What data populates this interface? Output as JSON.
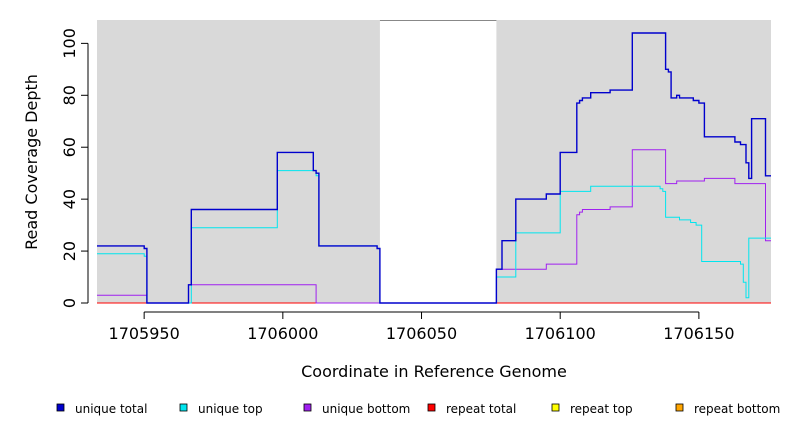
{
  "chart_data": {
    "type": "line",
    "xlabel": "Coordinate in Reference Genome",
    "ylabel": "Read Coverage Depth",
    "xlim": [
      1705933,
      1706176
    ],
    "ylim": [
      0,
      109
    ],
    "x_ticks": [
      1705950,
      1706000,
      1706050,
      1706100,
      1706150
    ],
    "x_tick_labels": [
      "1705950",
      "1706000",
      "1706050",
      "1706100",
      "1706150"
    ],
    "y_ticks": [
      0,
      20,
      40,
      60,
      80,
      100
    ],
    "y_tick_labels": [
      "0",
      "20",
      "40",
      "60",
      "80",
      "100"
    ],
    "background": "#d9d9d9",
    "gap_region": [
      1706035,
      1706077
    ],
    "legend_position": "bottom",
    "series": [
      {
        "name": "unique total",
        "color": "#0000cd",
        "points": [
          [
            1705933,
            22
          ],
          [
            1705950,
            22
          ],
          [
            1705950,
            21
          ],
          [
            1705951,
            21
          ],
          [
            1705951,
            0
          ],
          [
            1705966,
            0
          ],
          [
            1705966,
            7
          ],
          [
            1705967,
            7
          ],
          [
            1705967,
            36
          ],
          [
            1705998,
            36
          ],
          [
            1705998,
            58
          ],
          [
            1706011,
            58
          ],
          [
            1706011,
            51
          ],
          [
            1706012,
            51
          ],
          [
            1706012,
            50
          ],
          [
            1706013,
            50
          ],
          [
            1706013,
            22
          ],
          [
            1706034,
            22
          ],
          [
            1706034,
            21
          ],
          [
            1706035,
            21
          ],
          [
            1706035,
            0
          ],
          [
            1706077,
            0
          ],
          [
            1706077,
            13
          ],
          [
            1706079,
            13
          ],
          [
            1706079,
            24
          ],
          [
            1706084,
            24
          ],
          [
            1706084,
            40
          ],
          [
            1706095,
            40
          ],
          [
            1706095,
            42
          ],
          [
            1706100,
            42
          ],
          [
            1706100,
            58
          ],
          [
            1706106,
            58
          ],
          [
            1706106,
            77
          ],
          [
            1706107,
            77
          ],
          [
            1706107,
            78
          ],
          [
            1706108,
            78
          ],
          [
            1706108,
            79
          ],
          [
            1706111,
            79
          ],
          [
            1706111,
            81
          ],
          [
            1706118,
            81
          ],
          [
            1706118,
            82
          ],
          [
            1706126,
            82
          ],
          [
            1706126,
            104
          ],
          [
            1706138,
            104
          ],
          [
            1706138,
            90
          ],
          [
            1706139,
            90
          ],
          [
            1706139,
            89
          ],
          [
            1706140,
            89
          ],
          [
            1706140,
            79
          ],
          [
            1706142,
            79
          ],
          [
            1706142,
            80
          ],
          [
            1706143,
            80
          ],
          [
            1706143,
            79
          ],
          [
            1706148,
            79
          ],
          [
            1706148,
            78
          ],
          [
            1706150,
            78
          ],
          [
            1706150,
            77
          ],
          [
            1706152,
            77
          ],
          [
            1706152,
            64
          ],
          [
            1706163,
            64
          ],
          [
            1706163,
            62
          ],
          [
            1706165,
            62
          ],
          [
            1706165,
            61
          ],
          [
            1706167,
            61
          ],
          [
            1706167,
            54
          ],
          [
            1706168,
            54
          ],
          [
            1706168,
            48
          ],
          [
            1706169,
            48
          ],
          [
            1706169,
            71
          ],
          [
            1706174,
            71
          ],
          [
            1706174,
            49
          ],
          [
            1706176,
            49
          ]
        ]
      },
      {
        "name": "unique top",
        "color": "#00e5ee",
        "points": [
          [
            1705933,
            19
          ],
          [
            1705950,
            19
          ],
          [
            1705950,
            18
          ],
          [
            1705951,
            18
          ],
          [
            1705951,
            0
          ],
          [
            1705967,
            0
          ],
          [
            1705967,
            29
          ],
          [
            1705998,
            29
          ],
          [
            1705998,
            51
          ],
          [
            1706012,
            51
          ],
          [
            1706012,
            49
          ],
          [
            1706013,
            49
          ],
          [
            1706013,
            22
          ],
          [
            1706034,
            22
          ],
          [
            1706034,
            21
          ],
          [
            1706035,
            21
          ],
          [
            1706035,
            0
          ],
          [
            1706077,
            0
          ],
          [
            1706077,
            10
          ],
          [
            1706084,
            10
          ],
          [
            1706084,
            27
          ],
          [
            1706100,
            27
          ],
          [
            1706100,
            43
          ],
          [
            1706111,
            43
          ],
          [
            1706111,
            45
          ],
          [
            1706136,
            45
          ],
          [
            1706136,
            44
          ],
          [
            1706137,
            44
          ],
          [
            1706137,
            43
          ],
          [
            1706138,
            43
          ],
          [
            1706138,
            33
          ],
          [
            1706143,
            33
          ],
          [
            1706143,
            32
          ],
          [
            1706147,
            32
          ],
          [
            1706147,
            31
          ],
          [
            1706149,
            31
          ],
          [
            1706149,
            30
          ],
          [
            1706151,
            30
          ],
          [
            1706151,
            16
          ],
          [
            1706165,
            16
          ],
          [
            1706165,
            15
          ],
          [
            1706166,
            15
          ],
          [
            1706166,
            8
          ],
          [
            1706167,
            8
          ],
          [
            1706167,
            2
          ],
          [
            1706168,
            2
          ],
          [
            1706168,
            25
          ],
          [
            1706176,
            25
          ]
        ]
      },
      {
        "name": "unique bottom",
        "color": "#a020f0",
        "points": [
          [
            1705933,
            3
          ],
          [
            1705950,
            3
          ],
          [
            1705950,
            3
          ],
          [
            1705951,
            3
          ],
          [
            1705951,
            0
          ],
          [
            1705966,
            0
          ],
          [
            1705966,
            7
          ],
          [
            1706012,
            7
          ],
          [
            1706012,
            0
          ],
          [
            1706077,
            0
          ],
          [
            1706077,
            13
          ],
          [
            1706095,
            13
          ],
          [
            1706095,
            15
          ],
          [
            1706106,
            15
          ],
          [
            1706106,
            34
          ],
          [
            1706107,
            34
          ],
          [
            1706107,
            35
          ],
          [
            1706108,
            35
          ],
          [
            1706108,
            36
          ],
          [
            1706118,
            36
          ],
          [
            1706118,
            37
          ],
          [
            1706126,
            37
          ],
          [
            1706126,
            59
          ],
          [
            1706138,
            59
          ],
          [
            1706138,
            46
          ],
          [
            1706142,
            46
          ],
          [
            1706142,
            47
          ],
          [
            1706152,
            47
          ],
          [
            1706152,
            48
          ],
          [
            1706163,
            48
          ],
          [
            1706163,
            46
          ],
          [
            1706174,
            46
          ],
          [
            1706174,
            24
          ],
          [
            1706176,
            24
          ]
        ]
      },
      {
        "name": "repeat total",
        "color": "#ff0000",
        "points": [
          [
            1705933,
            0
          ],
          [
            1706176,
            0
          ]
        ]
      },
      {
        "name": "repeat top",
        "color": "#ffff00",
        "points": [
          [
            1705933,
            0
          ],
          [
            1706176,
            0
          ]
        ]
      },
      {
        "name": "repeat bottom",
        "color": "#ffa500",
        "points": [
          [
            1705933,
            0
          ],
          [
            1706176,
            0
          ]
        ]
      }
    ]
  }
}
